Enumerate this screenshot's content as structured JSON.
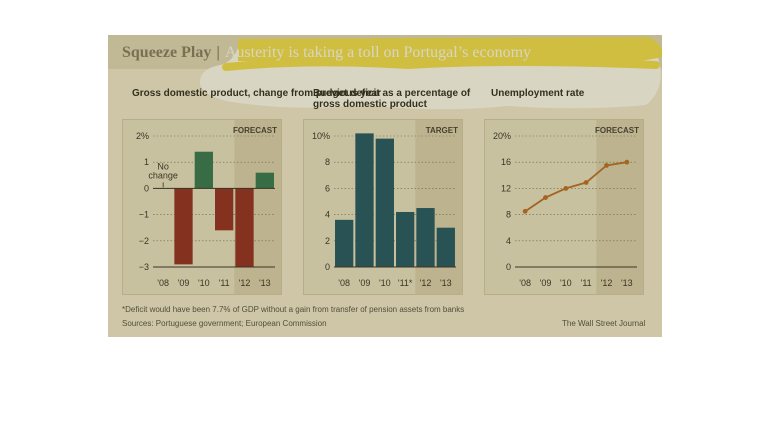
{
  "title": {
    "main": "Squeeze Play",
    "separator": "|",
    "sub": "Austerity is taking a toll on Portugal’s economy"
  },
  "colors": {
    "positive": "#1f6e4f",
    "negative": "#8a1c1c",
    "deficit": "#0b4a66",
    "unemployment": "#b5651d",
    "forecast_band": "#d8d1b8"
  },
  "chart_data": [
    {
      "type": "bar",
      "title": "Gross domestic product, change from previous year",
      "categories": [
        "'08",
        "'09",
        "'10",
        "'11",
        "'12",
        "'13"
      ],
      "values": [
        0,
        -2.9,
        1.4,
        -1.6,
        -3.0,
        0.6
      ],
      "ylim": [
        -3,
        2
      ],
      "yticks": [
        "2%",
        "1",
        "0",
        "−1",
        "−2",
        "−3"
      ],
      "ytick_values": [
        2,
        1,
        0,
        -1,
        -2,
        -3
      ],
      "forecast_label": "FORECAST",
      "forecast_from": "'12",
      "annotation": "No change",
      "grid": true
    },
    {
      "type": "bar",
      "title": "Budget deficit as a percentage of gross domestic product",
      "categories": [
        "'08",
        "'09",
        "'10",
        "'11*",
        "'12",
        "'13"
      ],
      "values": [
        3.6,
        10.2,
        9.8,
        4.2,
        4.5,
        3.0
      ],
      "ylim": [
        0,
        10
      ],
      "yticks": [
        "10%",
        "8",
        "6",
        "4",
        "2",
        "0"
      ],
      "ytick_values": [
        10,
        8,
        6,
        4,
        2,
        0
      ],
      "forecast_label": "TARGET",
      "forecast_from": "'12",
      "grid": true
    },
    {
      "type": "line",
      "title": "Unemployment rate",
      "categories": [
        "'08",
        "'09",
        "'10",
        "'11",
        "'12",
        "'13"
      ],
      "values": [
        8.5,
        10.6,
        12.0,
        12.9,
        15.5,
        16.0
      ],
      "ylim": [
        0,
        20
      ],
      "yticks": [
        "20%",
        "16",
        "12",
        "8",
        "4",
        "0"
      ],
      "ytick_values": [
        20,
        16,
        12,
        8,
        4,
        0
      ],
      "forecast_label": "FORECAST",
      "forecast_from": "'12",
      "grid": true
    }
  ],
  "footnote": "*Deficit would have been 7.7% of GDP without a gain from transfer of pension assets from banks",
  "sources": "Sources: Portuguese government; European Commission",
  "credit": "The Wall Street Journal"
}
